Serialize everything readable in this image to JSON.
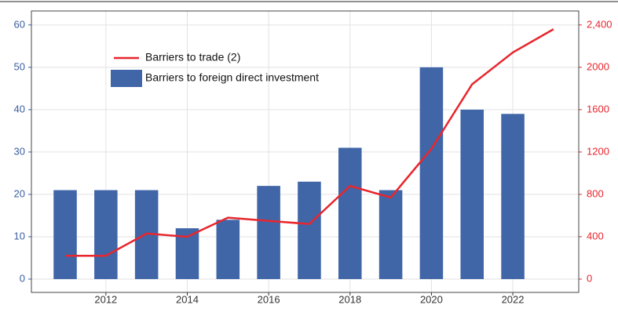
{
  "chart_data": {
    "type": "bar_line",
    "x": [
      2011,
      2012,
      2013,
      2014,
      2015,
      2016,
      2017,
      2018,
      2019,
      2020,
      2021,
      2022,
      2023
    ],
    "series": [
      {
        "name": "Barriers to foreign direct investment",
        "type": "bar",
        "color": "#4066a8",
        "x": [
          2011,
          2012,
          2013,
          2014,
          2015,
          2016,
          2017,
          2018,
          2019,
          2020,
          2021,
          2022
        ],
        "values": [
          21,
          21,
          21,
          12,
          14,
          22,
          23,
          31,
          21,
          50,
          40,
          39
        ]
      },
      {
        "name": "Barriers to trade (2)",
        "type": "line",
        "color": "#e8262d",
        "axis": "y2",
        "x": [
          2011,
          2012,
          2013,
          2014,
          2015,
          2016,
          2017,
          2018,
          2019,
          2020,
          2021,
          2022,
          2023
        ],
        "values": [
          220,
          220,
          430,
          400,
          580,
          550,
          520,
          880,
          770,
          1230,
          1840,
          2140,
          2360
        ]
      }
    ],
    "xlim": [
      2010.17,
      2023.62
    ],
    "xticks": [
      2012,
      2014,
      2016,
      2018,
      2020,
      2022
    ],
    "ylim": [
      -3.15,
      63.3
    ],
    "yticks": [
      0,
      10,
      20,
      30,
      40,
      50,
      60
    ],
    "y2lim": [
      -126,
      2532
    ],
    "y2ticks": [
      0,
      400,
      800,
      1200,
      1600,
      2000,
      {
        "value": 2400,
        "label": "2,400"
      }
    ],
    "y2ticks_labels_fmt": null,
    "grid": true,
    "legend": "upper left"
  }
}
